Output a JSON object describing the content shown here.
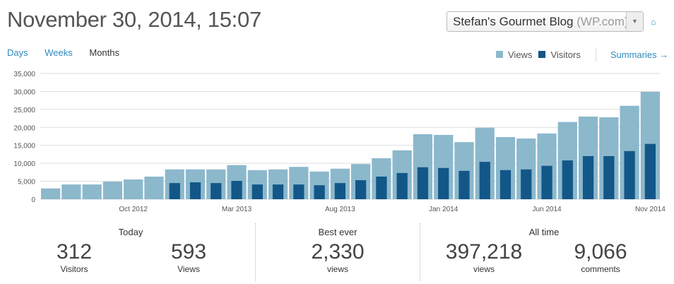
{
  "header": {
    "title": "November 30, 2014, 15:07",
    "site_name": "Stefan's Gourmet Blog",
    "site_host": "(WP.com)",
    "home_icon": "home-icon"
  },
  "periods": [
    {
      "label": "Days",
      "active": false
    },
    {
      "label": "Weeks",
      "active": false
    },
    {
      "label": "Months",
      "active": true
    }
  ],
  "legend": {
    "views": "Views",
    "visitors": "Visitors",
    "summaries": "Summaries →"
  },
  "colors": {
    "views": "#8cb8cc",
    "visitors": "#135788",
    "link": "#2e8bc0"
  },
  "chart_data": {
    "type": "bar",
    "title": "",
    "categories": [
      "Jun 2012",
      "Jul 2012",
      "Aug 2012",
      "Sep 2012",
      "Oct 2012",
      "Nov 2012",
      "Dec 2012",
      "Jan 2013",
      "Feb 2013",
      "Mar 2013",
      "Apr 2013",
      "May 2013",
      "Jun 2013",
      "Jul 2013",
      "Aug 2013",
      "Sep 2013",
      "Oct 2013",
      "Nov 2013",
      "Dec 2013",
      "Jan 2014",
      "Feb 2014",
      "Mar 2014",
      "Apr 2014",
      "May 2014",
      "Jun 2014",
      "Jul 2014",
      "Aug 2014",
      "Sep 2014",
      "Oct 2014",
      "Nov 2014"
    ],
    "x_tick_labels": [
      {
        "index": 4,
        "label": "Oct 2012"
      },
      {
        "index": 9,
        "label": "Mar 2013"
      },
      {
        "index": 14,
        "label": "Aug 2013"
      },
      {
        "index": 19,
        "label": "Jan 2014"
      },
      {
        "index": 24,
        "label": "Jun 2014"
      },
      {
        "index": 29,
        "label": "Nov 2014"
      }
    ],
    "y_ticks": [
      "0",
      "5,000",
      "10,000",
      "15,000",
      "20,000",
      "25,000",
      "30,000",
      "35,000"
    ],
    "ylim": [
      0,
      35000
    ],
    "grid": true,
    "series": [
      {
        "name": "Views",
        "values": [
          3000,
          4100,
          4100,
          4900,
          5500,
          6300,
          8300,
          8300,
          8300,
          9500,
          8100,
          8300,
          9000,
          7700,
          8500,
          9800,
          11400,
          13600,
          18100,
          17900,
          15900,
          19900,
          17300,
          16900,
          18300,
          21500,
          23000,
          22800,
          26000,
          29900
        ]
      },
      {
        "name": "Visitors",
        "values": [
          null,
          null,
          null,
          null,
          null,
          null,
          4500,
          4700,
          4500,
          5100,
          4100,
          4100,
          4100,
          3900,
          4500,
          5300,
          6300,
          7300,
          8900,
          8700,
          7900,
          10400,
          8100,
          8300,
          9300,
          10800,
          12000,
          12000,
          13400,
          15400
        ]
      }
    ]
  },
  "stats": {
    "today": {
      "heading": "Today",
      "visitors": "312",
      "visitors_label": "Visitors",
      "views": "593",
      "views_label": "Views"
    },
    "best": {
      "heading": "Best ever",
      "views": "2,330",
      "views_label": "views"
    },
    "all_time": {
      "heading": "All time",
      "views": "397,218",
      "views_label": "views",
      "comments": "9,066",
      "comments_label": "comments"
    }
  }
}
